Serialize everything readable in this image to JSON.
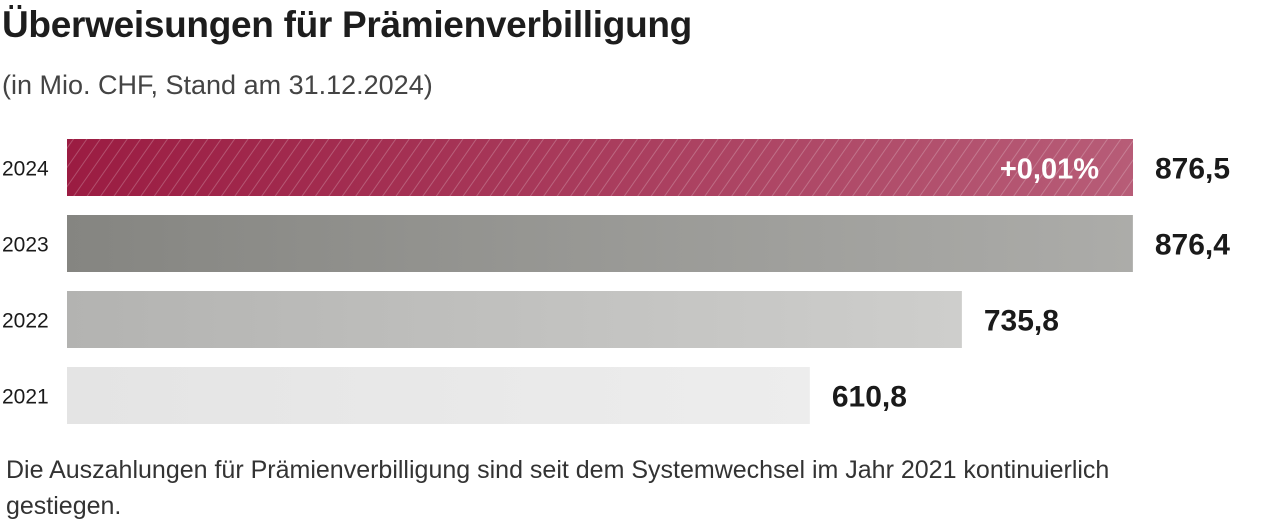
{
  "title": "Überweisungen für Prämienverbilligung",
  "subtitle": "(in Mio. CHF, Stand am 31.12.2024)",
  "caption": "Die Auszahlungen für Prämienverbilligung sind seit dem Systemwechsel im Jahr 2021 kontinuierlich gestiegen.",
  "chart_data": {
    "type": "bar",
    "orientation": "horizontal",
    "categories": [
      "2024",
      "2023",
      "2022",
      "2021"
    ],
    "values": [
      876.5,
      876.4,
      735.8,
      610.8
    ],
    "value_labels": [
      "876,5",
      "876,4",
      "735,8",
      "610,8"
    ],
    "annotations": [
      {
        "category": "2024",
        "text": "+0,01%"
      }
    ],
    "xlim": [
      0,
      876.5
    ],
    "grid": false,
    "legend": "none",
    "colors": {
      "2024": "#9b1c42",
      "2023": "#858581",
      "2022": "#b3b3b1",
      "2021": "#e4e4e4"
    }
  }
}
